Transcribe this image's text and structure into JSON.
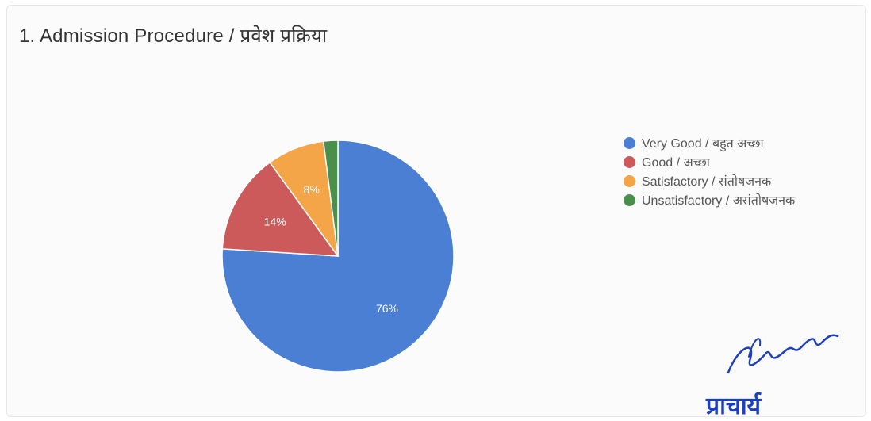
{
  "chart_data": {
    "type": "pie",
    "title": "1. Admission Procedure / प्रवेश प्रक्रिया",
    "categories": [
      "Very Good / बहुत अच्छा",
      "Good / अच्छा",
      "Satisfactory / संतोषजनक",
      "Unsatisfactory / असंतोषजनक"
    ],
    "values": [
      76,
      14,
      8,
      2
    ],
    "slice_labels": [
      "76%",
      "14%",
      "8%",
      ""
    ],
    "colors": [
      "#4a7fd4",
      "#cc5a5a",
      "#f3a548",
      "#4a8f4a"
    ],
    "legend_position": "right"
  },
  "stamp": {
    "text": "प्राचार्य",
    "color": "#1d3fbf"
  }
}
